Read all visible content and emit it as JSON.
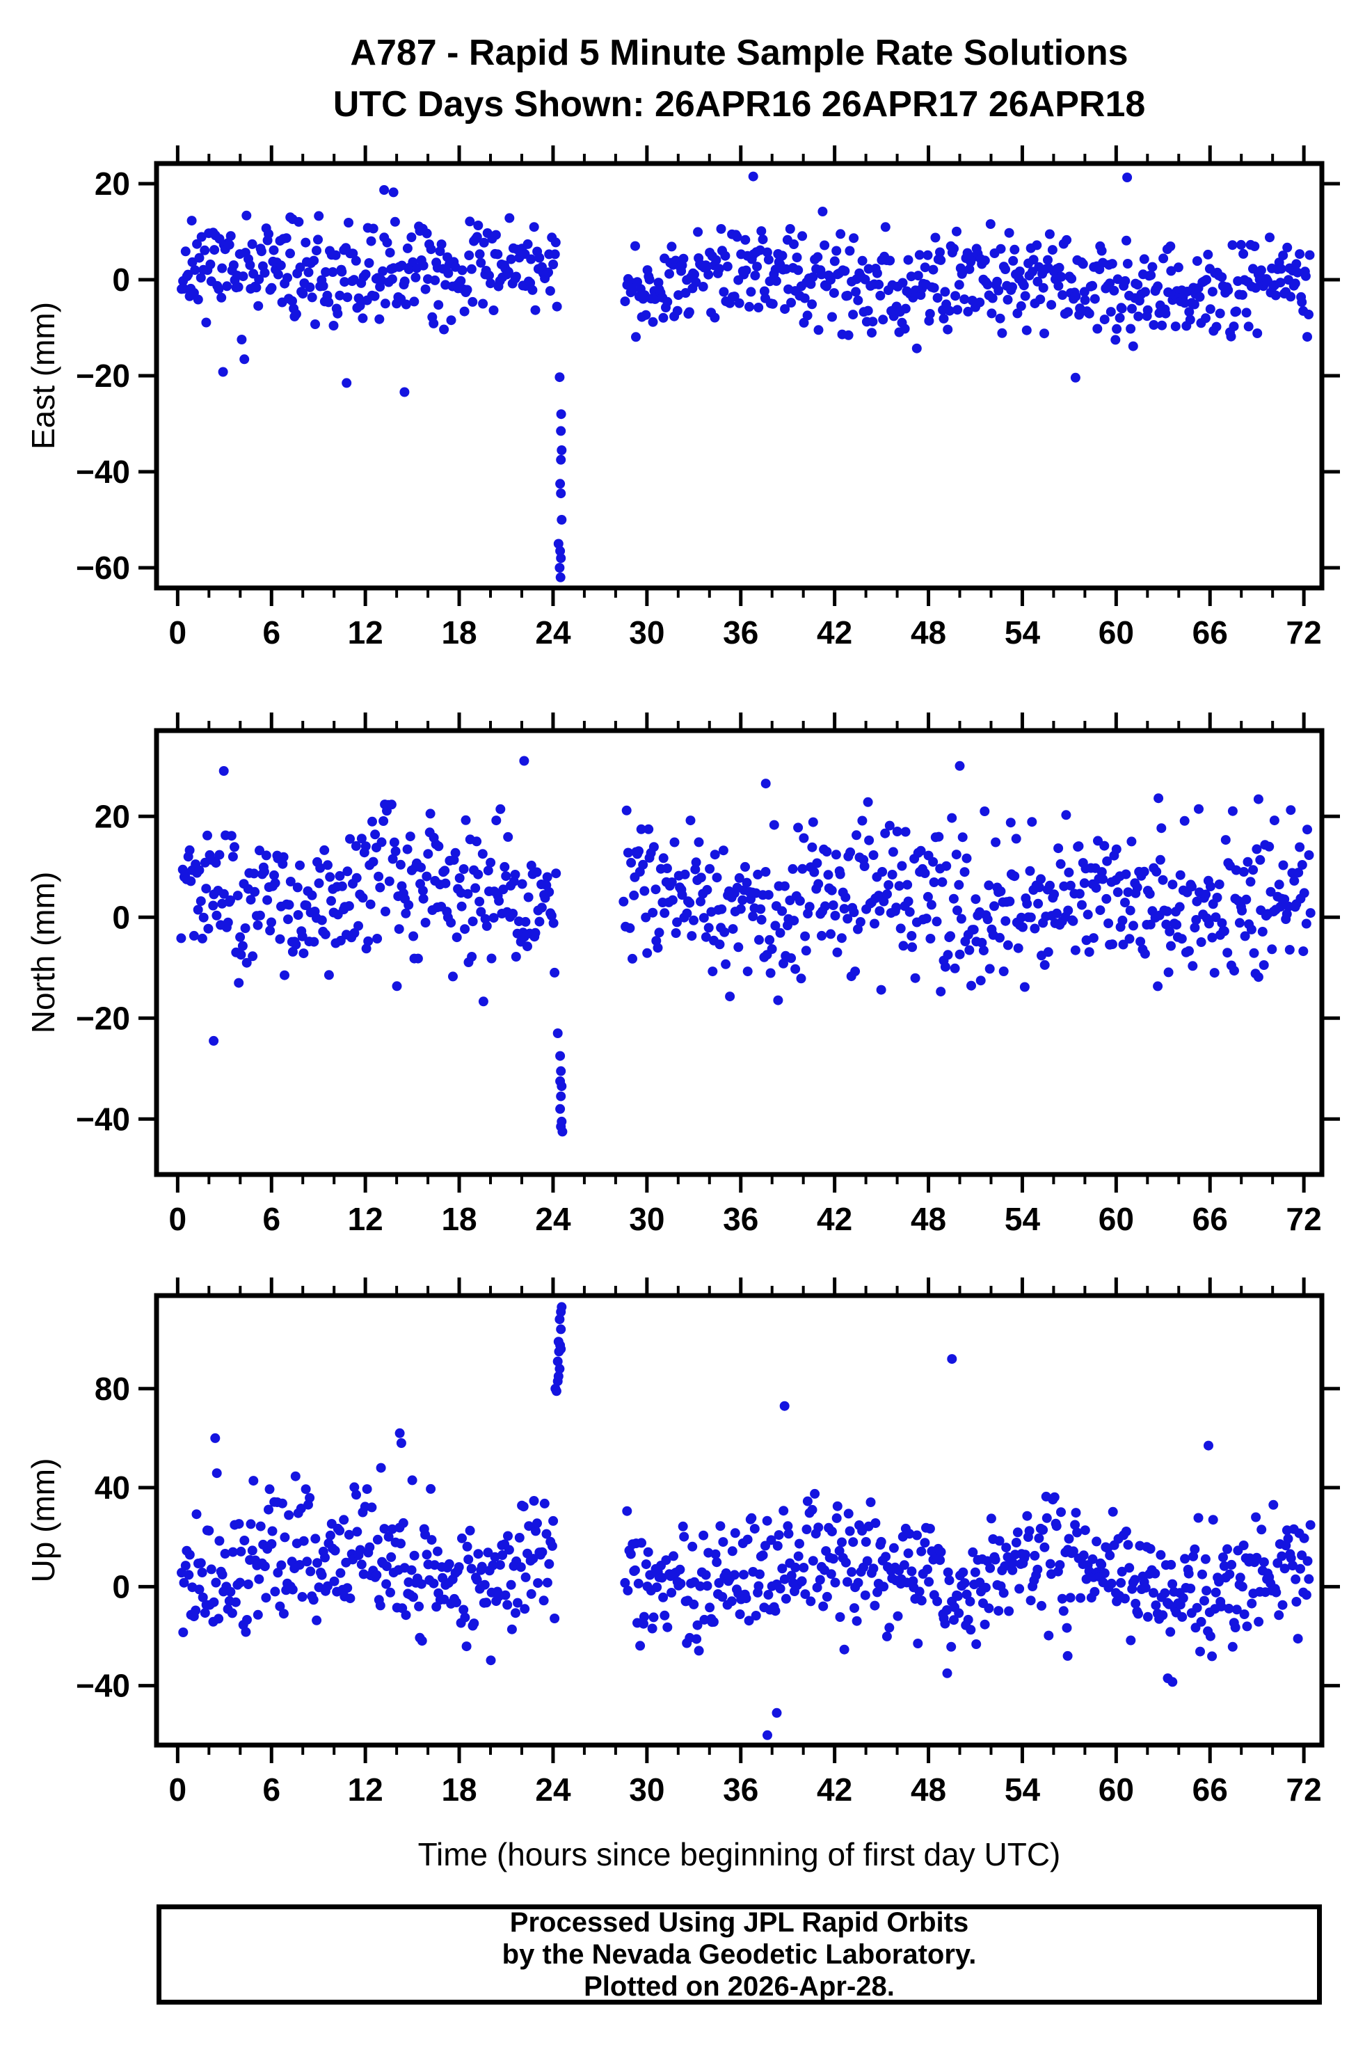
{
  "header": {
    "line1": "A787 - Rapid 5 Minute Sample Rate Solutions",
    "line2": "UTC Days Shown:  26APR16 26APR17 26APR18"
  },
  "footer": {
    "lines": [
      "Processed Using JPL Rapid Orbits",
      "by the Nevada Geodetic Laboratory.",
      "Plotted on 2026-Apr-28."
    ]
  },
  "chart_data": {
    "type": "scatter",
    "title": "A787 - Rapid 5 Minute Sample Rate Solutions",
    "subtitle": "UTC Days Shown:  26APR16 26APR17 26APR18",
    "dot_color": "#1414e0",
    "point_radius": 7,
    "frame_color": "#000000",
    "x_axis": {
      "label": "Time (hours since beginning of first day UTC)",
      "range": [
        -1.35,
        73.15
      ],
      "major_ticks": [
        0,
        6,
        12,
        18,
        24,
        30,
        36,
        42,
        48,
        54,
        60,
        66,
        72
      ],
      "minor_step": 2,
      "grid": false
    },
    "legend": "none",
    "panels": [
      {
        "id": "east",
        "ylabel": "East (mm)",
        "yticks": [
          20,
          0,
          -20,
          -40,
          -60
        ],
        "yrange": [
          -64.2,
          24.2
        ],
        "box": {
          "x0": 225,
          "x1": 1900,
          "y0": 235,
          "y1": 845
        },
        "cloud": {
          "seed": 11,
          "count": 830,
          "x_start": 0.25,
          "x_end": 72.4,
          "gap": [
            24.35,
            28.6
          ],
          "mean": 0,
          "sigma": 5.0,
          "clip": [
            -17.5,
            15.5
          ],
          "day_mean": [
            1.2,
            -0.2,
            -1.2
          ],
          "day_sigma": [
            1,
            1,
            1.05
          ],
          "wave": {
            "amp": 1.6,
            "period": 17,
            "phase": 0.8
          }
        },
        "outliers": [
          [
            0.9,
            12.3
          ],
          [
            7.2,
            13.0
          ],
          [
            7.35,
            12.6
          ],
          [
            13.2,
            18.7
          ],
          [
            13.8,
            18.2
          ],
          [
            36.8,
            21.5
          ],
          [
            60.7,
            21.3
          ],
          [
            2.9,
            -19.2
          ],
          [
            10.8,
            -21.5
          ],
          [
            14.5,
            -23.4
          ],
          [
            57.4,
            -20.4
          ],
          [
            24.42,
            -20.3
          ],
          [
            24.52,
            -28.0
          ],
          [
            24.5,
            -31.5
          ],
          [
            24.55,
            -35.5
          ],
          [
            24.5,
            -37.5
          ],
          [
            24.45,
            -42.5
          ],
          [
            24.5,
            -44.5
          ],
          [
            24.55,
            -50.0
          ],
          [
            24.35,
            -55.0
          ],
          [
            24.45,
            -56.5
          ],
          [
            24.5,
            -58.0
          ],
          [
            24.42,
            -60.0
          ],
          [
            24.48,
            -62.0
          ]
        ]
      },
      {
        "id": "north",
        "ylabel": "North (mm)",
        "yticks": [
          20,
          0,
          -20,
          -40
        ],
        "yrange": [
          -51,
          37
        ],
        "box": {
          "x0": 225,
          "x1": 1900,
          "y0": 1050,
          "y1": 1688
        },
        "cloud": {
          "seed": 23,
          "count": 830,
          "x_start": 0.25,
          "x_end": 72.4,
          "gap": [
            24.2,
            28.5
          ],
          "mean": 3.0,
          "sigma": 7.2,
          "clip": [
            -17.5,
            23
          ],
          "day_mean": [
            1.5,
            0.5,
            0.5
          ],
          "day_sigma": [
            1,
            1,
            1
          ],
          "wave": {
            "amp": 3.0,
            "period": 15,
            "phase": 2.0
          }
        },
        "outliers": [
          [
            2.95,
            29.0
          ],
          [
            22.15,
            31.0
          ],
          [
            37.6,
            26.5
          ],
          [
            50.0,
            30.0
          ],
          [
            62.7,
            23.6
          ],
          [
            69.1,
            23.4
          ],
          [
            2.3,
            -24.5
          ],
          [
            24.3,
            -23.0
          ],
          [
            24.45,
            -27.5
          ],
          [
            24.5,
            -30.5
          ],
          [
            24.45,
            -32.5
          ],
          [
            24.55,
            -33.5
          ],
          [
            24.5,
            -35.5
          ],
          [
            24.45,
            -38.0
          ],
          [
            24.55,
            -40.5
          ],
          [
            24.5,
            -41.5
          ],
          [
            24.6,
            -42.5
          ]
        ]
      },
      {
        "id": "up",
        "ylabel": "Up (mm)",
        "yticks": [
          80,
          40,
          0,
          -40
        ],
        "yrange": [
          -64,
          117.6
        ],
        "box": {
          "x0": 225,
          "x1": 1900,
          "y0": 1862,
          "y1": 2508
        },
        "cloud": {
          "seed": 37,
          "count": 830,
          "x_start": 0.25,
          "x_end": 72.4,
          "gap": [
            24.1,
            28.6
          ],
          "mean": 6,
          "sigma": 13,
          "clip": [
            -31,
            46
          ],
          "day_mean": [
            4,
            1,
            -2
          ],
          "day_sigma": [
            1.15,
            1,
            0.95
          ],
          "wave": {
            "amp": 6,
            "period": 16,
            "phase": 4.2
          }
        },
        "outliers": [
          [
            24.15,
            80
          ],
          [
            24.22,
            79
          ],
          [
            24.3,
            83
          ],
          [
            24.35,
            85
          ],
          [
            24.42,
            88
          ],
          [
            24.3,
            91
          ],
          [
            24.38,
            95
          ],
          [
            24.5,
            96
          ],
          [
            24.45,
            97.5
          ],
          [
            24.35,
            99
          ],
          [
            24.5,
            104
          ],
          [
            24.42,
            108
          ],
          [
            24.5,
            111
          ],
          [
            24.55,
            113
          ],
          [
            2.4,
            60
          ],
          [
            13.0,
            48
          ],
          [
            14.2,
            62
          ],
          [
            14.3,
            58
          ],
          [
            15.0,
            43
          ],
          [
            38.8,
            73
          ],
          [
            49.5,
            92
          ],
          [
            65.9,
            57
          ],
          [
            37.7,
            -60
          ],
          [
            38.3,
            -51
          ],
          [
            49.2,
            -35
          ],
          [
            56.9,
            -28
          ],
          [
            63.3,
            -37
          ],
          [
            63.6,
            -38.5
          ]
        ]
      }
    ]
  }
}
